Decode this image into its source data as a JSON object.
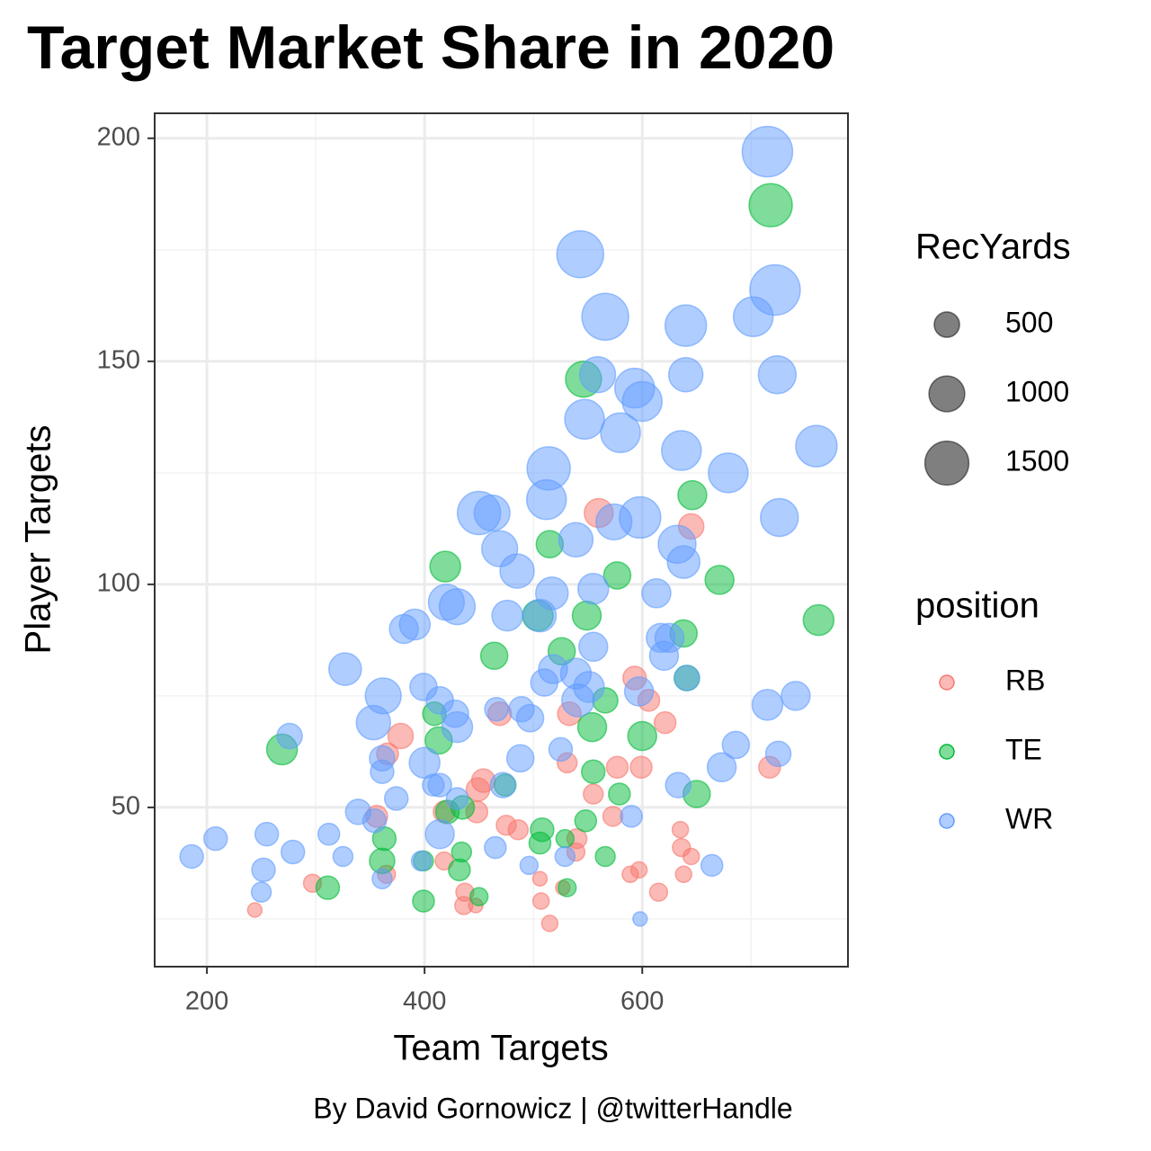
{
  "chart_data": {
    "type": "scatter",
    "title": "Target Market Share in 2020",
    "x_label": "Team Targets",
    "y_label": "Player Targets",
    "caption": "By David Gornowicz | @twitterHandle",
    "xlim": [
      152,
      789
    ],
    "ylim": [
      14.3,
      205.6
    ],
    "xticks": [
      200,
      400,
      600
    ],
    "yticks": [
      50,
      100,
      150,
      200
    ],
    "xminor": [
      300,
      500,
      700
    ],
    "yminor": [
      25,
      75,
      125,
      175
    ],
    "grid": true,
    "size_legend": {
      "title": "RecYards",
      "values": [
        500,
        1000,
        1500
      ]
    },
    "color_legend_title": "position",
    "series": [
      {
        "name": "RB",
        "color": "#F8766D",
        "x": [
          560,
          645,
          593,
          606,
          469,
          533,
          621,
          378,
          366,
          577,
          599,
          531,
          717,
          454,
          449,
          555,
          573,
          448,
          418,
          356,
          475,
          486,
          540,
          635,
          636,
          645,
          539,
          418,
          597,
          589,
          638,
          365,
          506,
          297,
          527,
          615,
          437,
          507,
          436,
          447,
          244,
          515
        ],
        "values": [
          116,
          113,
          79,
          74,
          71,
          71,
          69,
          66,
          62,
          59,
          59,
          60,
          59,
          56,
          54,
          53,
          48,
          49,
          49,
          48,
          46,
          45,
          43,
          45,
          41,
          39,
          40,
          38,
          36,
          35,
          35,
          35,
          34,
          33,
          32,
          31,
          31,
          29,
          28,
          28,
          27,
          24
        ],
        "sizes": [
          645,
          495,
          425,
          365,
          425,
          425,
          365,
          495,
          365,
          365,
          365,
          305,
          365,
          425,
          425,
          305,
          305,
          365,
          365,
          365,
          305,
          305,
          305,
          205,
          250,
          205,
          250,
          250,
          205,
          205,
          205,
          250,
          160,
          250,
          160,
          250,
          250,
          205,
          250,
          160,
          160,
          205
        ]
      },
      {
        "name": "TE",
        "color": "#00BA38",
        "x": [
          718,
          546,
          646,
          515,
          419,
          577,
          671,
          762,
          504,
          549,
          638,
          464,
          526,
          641,
          566,
          409,
          554,
          600,
          413,
          269,
          555,
          579,
          650,
          474,
          421,
          435,
          548,
          508,
          363,
          361,
          434,
          399,
          506,
          529,
          566,
          432,
          311,
          531,
          399,
          450
        ],
        "values": [
          185,
          146,
          120,
          109,
          104,
          102,
          101,
          92,
          93,
          93,
          89,
          84,
          85,
          79,
          74,
          71,
          68,
          66,
          65,
          63,
          58,
          53,
          53,
          55,
          49,
          50,
          47,
          45,
          43,
          38,
          40,
          38,
          42,
          43,
          39,
          36,
          32,
          32,
          29,
          30
        ],
        "sizes": [
          1450,
          1000,
          645,
          570,
          730,
          570,
          645,
          730,
          730,
          645,
          570,
          570,
          570,
          495,
          495,
          425,
          645,
          645,
          570,
          730,
          425,
          365,
          570,
          365,
          425,
          425,
          365,
          425,
          425,
          495,
          305,
          305,
          365,
          250,
          305,
          365,
          425,
          250,
          365,
          250
        ]
      },
      {
        "name": "WR",
        "color": "#619CFF",
        "x": [
          715,
          722,
          543,
          566,
          640,
          702,
          724,
          640,
          559,
          593,
          547,
          580,
          600,
          760,
          636,
          679,
          514,
          512,
          450,
          462,
          726,
          598,
          574,
          632,
          469,
          539,
          638,
          485,
          420,
          430,
          613,
          517,
          506,
          476,
          555,
          391,
          381,
          617,
          625,
          555,
          518,
          327,
          539,
          551,
          510,
          620,
          641,
          399,
          362,
          414,
          541,
          597,
          741,
          715,
          428,
          353,
          466,
          489,
          497,
          430,
          276,
          686,
          725,
          525,
          361,
          400,
          488,
          673,
          361,
          408,
          414,
          472,
          374,
          633,
          339,
          354,
          312,
          414,
          255,
          208,
          465,
          279,
          186,
          325,
          529,
          397,
          252,
          664,
          496,
          590,
          361,
          250,
          598,
          430
        ],
        "values": [
          197,
          166,
          174,
          160,
          158,
          160,
          147,
          147,
          147,
          144,
          137,
          134,
          141,
          131,
          130,
          125,
          126,
          119,
          116,
          116,
          115,
          115,
          114,
          109,
          108,
          110,
          105,
          103,
          96,
          95,
          98,
          98,
          93,
          93,
          99,
          91,
          90,
          88,
          88,
          86,
          81,
          81,
          80,
          77,
          78,
          84,
          79,
          77,
          75,
          74,
          74,
          76,
          75,
          73,
          71,
          69,
          72,
          72,
          70,
          68,
          66,
          64,
          62,
          63,
          61,
          60,
          61,
          59,
          58,
          55,
          55,
          55,
          52,
          55,
          49,
          47,
          44,
          44,
          44,
          43,
          41,
          40,
          39,
          39,
          39,
          38,
          36,
          37,
          37,
          48,
          34,
          31,
          25,
          52
        ],
        "sizes": [
          1975,
          1975,
          1700,
          1700,
          1330,
          1220,
          1110,
          910,
          1000,
          1220,
          1220,
          1220,
          1220,
          1330,
          1220,
          1220,
          1450,
          1220,
          1450,
          1000,
          1110,
          1330,
          1000,
          1110,
          1000,
          910,
          820,
          910,
          1000,
          1000,
          645,
          820,
          820,
          730,
          730,
          730,
          645,
          645,
          645,
          645,
          645,
          820,
          730,
          730,
          570,
          645,
          495,
          570,
          1000,
          570,
          820,
          645,
          645,
          730,
          570,
          910,
          425,
          495,
          570,
          730,
          495,
          570,
          495,
          425,
          495,
          730,
          570,
          645,
          425,
          365,
          425,
          495,
          425,
          495,
          495,
          425,
          365,
          645,
          425,
          425,
          365,
          425,
          425,
          305,
          305,
          305,
          425,
          365,
          250,
          365,
          305,
          305,
          160,
          365
        ]
      }
    ]
  }
}
